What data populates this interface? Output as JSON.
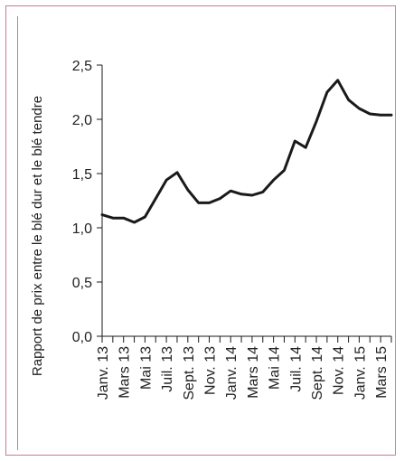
{
  "colors": {
    "frame": "#d07a8a",
    "line": "#1a1a1a",
    "text": "#222222"
  },
  "chart_data": {
    "type": "line",
    "ylabel": "Rapport de prix entre le blé dur et le blé tendre",
    "xlabel": "",
    "ylim": [
      0,
      2.5
    ],
    "y_ticks": [
      "0,0",
      "0,5",
      "1,0",
      "1,5",
      "2,0",
      "2,5"
    ],
    "y_tick_values": [
      0,
      0.5,
      1.0,
      1.5,
      2.0,
      2.5
    ],
    "x_labels": [
      "Janv. 13",
      "Mars 13",
      "Mai 13",
      "Juil. 13",
      "Sept. 13",
      "Nov. 13",
      "Janv. 14",
      "Mars 14",
      "Mai 14",
      "Juil. 14",
      "Sept. 14",
      "Nov. 14",
      "Janv. 15",
      "Mars 15"
    ],
    "x": [
      "2013-01",
      "2013-02",
      "2013-03",
      "2013-04",
      "2013-05",
      "2013-06",
      "2013-07",
      "2013-08",
      "2013-09",
      "2013-10",
      "2013-11",
      "2013-12",
      "2014-01",
      "2014-02",
      "2014-03",
      "2014-04",
      "2014-05",
      "2014-06",
      "2014-07",
      "2014-08",
      "2014-09",
      "2014-10",
      "2014-11",
      "2014-12",
      "2015-01",
      "2015-02",
      "2015-03",
      "2015-04"
    ],
    "values": [
      1.12,
      1.09,
      1.09,
      1.05,
      1.1,
      1.27,
      1.44,
      1.51,
      1.35,
      1.23,
      1.23,
      1.27,
      1.34,
      1.31,
      1.3,
      1.33,
      1.44,
      1.53,
      1.8,
      1.74,
      1.98,
      2.25,
      2.36,
      2.18,
      2.1,
      2.05,
      2.04,
      2.04
    ],
    "grid": false,
    "legend": "none"
  }
}
